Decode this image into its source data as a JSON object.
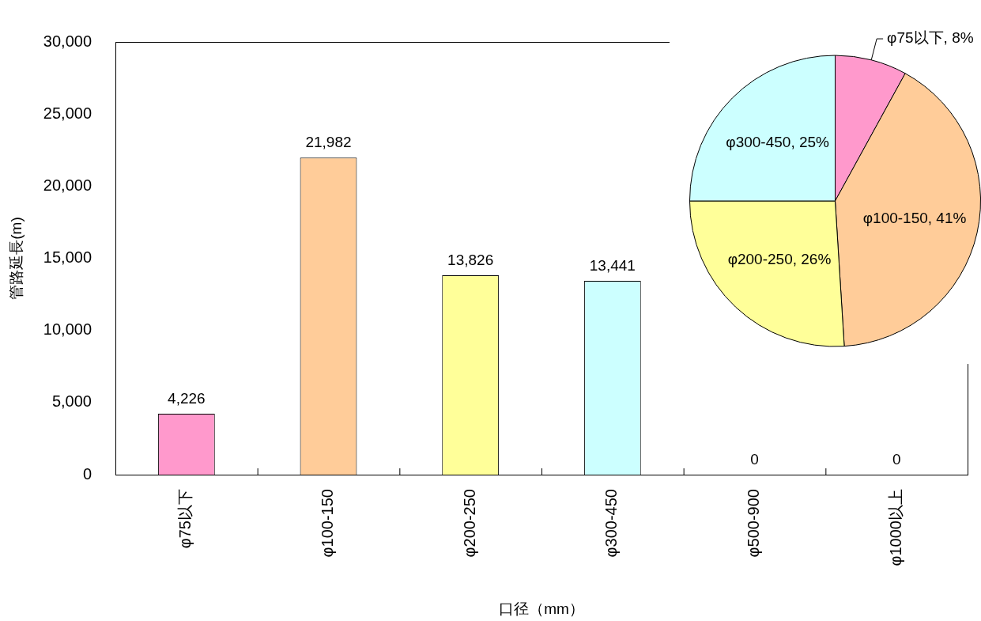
{
  "chart_data": [
    {
      "type": "bar",
      "xlabel": "口径（mm）",
      "ylabel": "管路延長(m)",
      "categories": [
        "φ75以下",
        "φ100-150",
        "φ200-250",
        "φ300-450",
        "φ500-900",
        "φ1000以上"
      ],
      "values": [
        4226,
        21982,
        13826,
        13441,
        0,
        0
      ],
      "colors": [
        "#ff99cc",
        "#ffcc99",
        "#ffff99",
        "#ccffff",
        null,
        null
      ],
      "value_labels": [
        "4,226",
        "21,982",
        "13,826",
        "13,441",
        "0",
        "0"
      ],
      "ylim": [
        0,
        30000
      ],
      "yticks": [
        0,
        {
          "value": 5000,
          "label": "5,000"
        },
        {
          "value": 10000,
          "label": "10,000"
        },
        {
          "value": 15000,
          "label": "15,000"
        },
        {
          "value": 20000,
          "label": "20,000"
        },
        {
          "value": 25000,
          "label": "25,000"
        },
        {
          "value": 30000,
          "label": "30,000"
        }
      ],
      "grid": false
    },
    {
      "type": "pie",
      "categories": [
        "φ75以下",
        "φ100-150",
        "φ200-250",
        "φ300-450"
      ],
      "values": [
        8,
        41,
        26,
        25
      ],
      "colors": [
        "#ff99cc",
        "#ffcc99",
        "#ffff99",
        "#ccffff"
      ],
      "value_labels": [
        "8%",
        "41%",
        "26%",
        "25%"
      ]
    }
  ]
}
